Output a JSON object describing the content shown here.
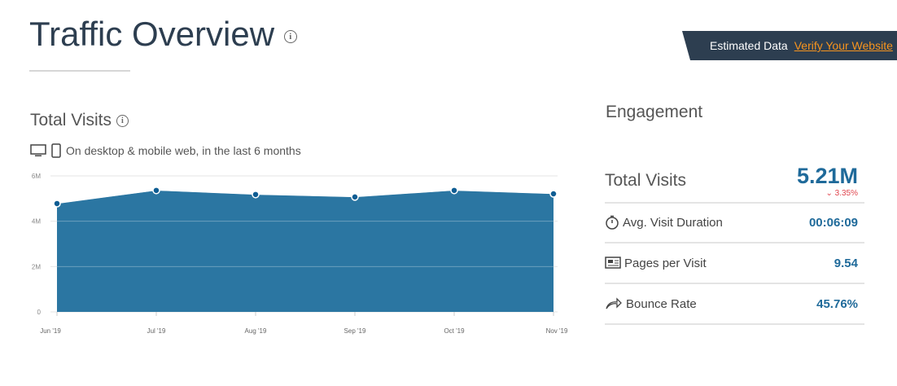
{
  "header": {
    "title": "Traffic Overview",
    "banner_label": "Estimated Data",
    "banner_link": "Verify Your Website"
  },
  "total_visits": {
    "title": "Total Visits",
    "subtitle": "On desktop & mobile web, in the last 6 months"
  },
  "engagement": {
    "title": "Engagement",
    "total_visits_label": "Total Visits",
    "total_visits_value": "5.21M",
    "change": "3.35%",
    "change_direction": "down",
    "metrics": [
      {
        "icon": "stopwatch-icon",
        "label": "Avg. Visit Duration",
        "value": "00:06:09"
      },
      {
        "icon": "pages-icon",
        "label": "Pages per Visit",
        "value": "9.54"
      },
      {
        "icon": "bounce-arrow-icon",
        "label": "Bounce Rate",
        "value": "45.76%"
      }
    ]
  },
  "colors": {
    "fill": "#2b76a2",
    "point": "#0f5d93",
    "accent": "#1f6a9a",
    "link": "#f7941e",
    "banner": "#2d3e50",
    "negative": "#e0464f"
  },
  "chart_data": {
    "type": "area",
    "categories": [
      "Jun '19",
      "Jul '19",
      "Aug '19",
      "Sep '19",
      "Oct '19",
      "Nov '19"
    ],
    "values": [
      4.78,
      5.36,
      5.18,
      5.07,
      5.36,
      5.21
    ],
    "unit": "M",
    "ylim": [
      0,
      6
    ],
    "yticks": [
      "0",
      "2M",
      "4M",
      "6M"
    ],
    "grid": true
  }
}
